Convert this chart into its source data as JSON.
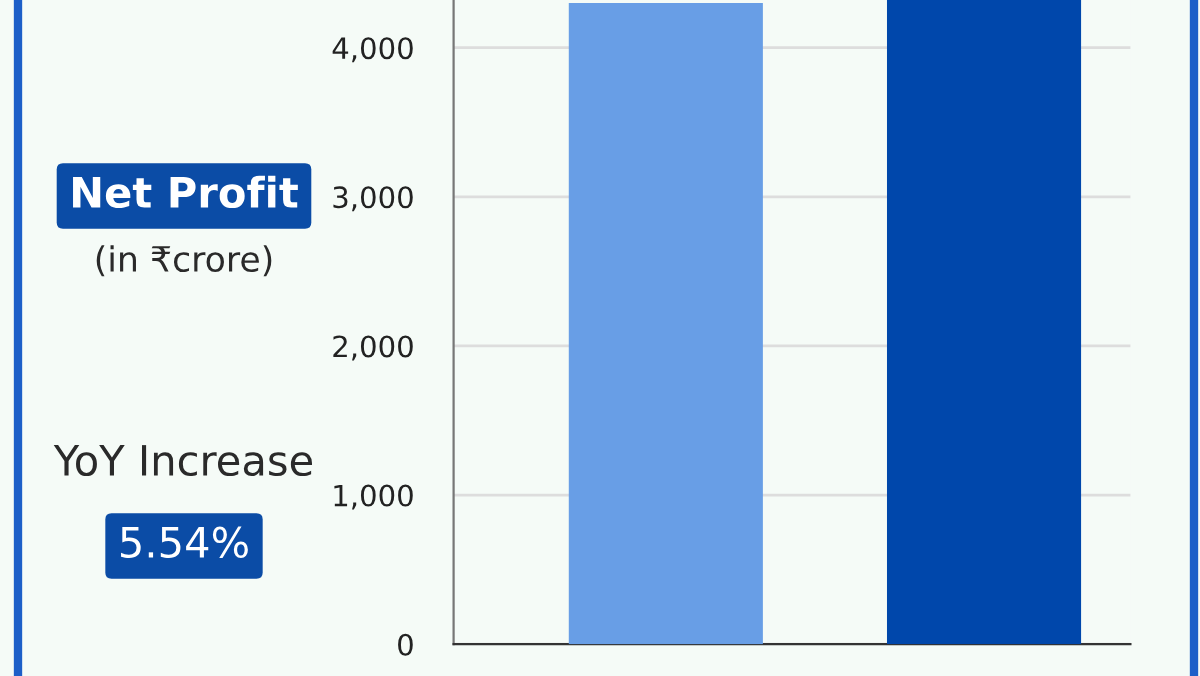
{
  "chart_data": {
    "type": "bar",
    "title": "Net Profit",
    "subtitle": "(in ₹crore)",
    "annotations": [
      "YoY Increase",
      "5.54%"
    ],
    "categories": [
      null,
      null
    ],
    "values": [
      4300,
      4320
    ],
    "colors": [
      "#689ee6",
      "#0047ab"
    ],
    "ylim": [
      0,
      4320
    ],
    "yticks": [
      0,
      {
        "value": 1000,
        "label": "1,000"
      },
      {
        "value": 2000,
        "label": "2,000"
      },
      {
        "value": 3000,
        "label": "3,000"
      },
      {
        "value": 4000,
        "label": "4,000"
      }
    ],
    "grid": "y"
  }
}
